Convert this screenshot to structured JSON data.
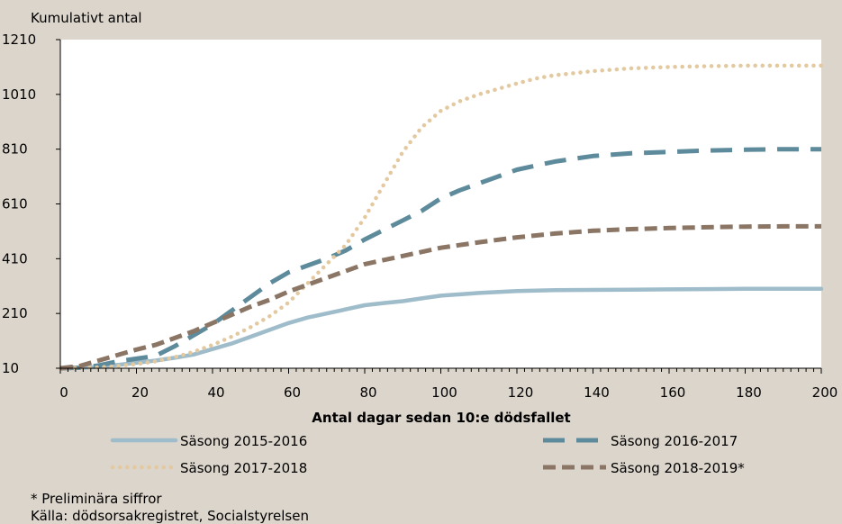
{
  "colors": {
    "background": "#dcd5cb",
    "plot_area": "#ffffff",
    "s2015": "#9fbccb",
    "s2016": "#5e8b9c",
    "s2017": "#e3c9a0",
    "s2018": "#8b7564"
  },
  "chart_data": {
    "type": "line",
    "title": "",
    "ylabel": "Kumulativt antal",
    "xlabel": "Antal dagar sedan 10:e dödsfallet",
    "xlim": [
      0,
      200
    ],
    "ylim": [
      10,
      1210
    ],
    "xticks": [
      0,
      20,
      40,
      60,
      80,
      100,
      120,
      140,
      160,
      180,
      200
    ],
    "yticks": [
      10,
      210,
      410,
      610,
      810,
      1010,
      1210
    ],
    "grid": false,
    "legend_position": "bottom",
    "series": [
      {
        "name": "Säsong 2015-2016",
        "style": "solid",
        "x": [
          0,
          5,
          10,
          15,
          20,
          25,
          30,
          35,
          40,
          45,
          50,
          55,
          60,
          65,
          70,
          75,
          80,
          85,
          90,
          95,
          100,
          110,
          120,
          130,
          140,
          150,
          160,
          170,
          180,
          190,
          200
        ],
        "y": [
          10,
          11,
          15,
          22,
          30,
          38,
          48,
          60,
          80,
          100,
          125,
          150,
          175,
          195,
          210,
          225,
          240,
          248,
          255,
          265,
          275,
          285,
          292,
          295,
          296,
          297,
          298,
          299,
          300,
          300,
          300
        ]
      },
      {
        "name": "Säsong 2016-2017",
        "style": "dashed",
        "x": [
          0,
          5,
          10,
          15,
          20,
          25,
          30,
          35,
          40,
          45,
          50,
          55,
          60,
          65,
          70,
          75,
          80,
          85,
          90,
          95,
          100,
          105,
          110,
          115,
          120,
          130,
          140,
          150,
          160,
          170,
          180,
          190,
          200
        ],
        "y": [
          10,
          12,
          20,
          35,
          45,
          55,
          90,
          130,
          170,
          220,
          270,
          320,
          360,
          385,
          410,
          440,
          480,
          515,
          550,
          585,
          630,
          660,
          685,
          710,
          735,
          765,
          785,
          795,
          800,
          805,
          808,
          810,
          810
        ]
      },
      {
        "name": "Säsong 2017-2018",
        "style": "dotted",
        "x": [
          0,
          5,
          10,
          15,
          20,
          25,
          30,
          35,
          40,
          45,
          50,
          55,
          60,
          65,
          70,
          75,
          80,
          85,
          90,
          95,
          100,
          105,
          110,
          115,
          120,
          125,
          130,
          140,
          150,
          160,
          170,
          180,
          190,
          200
        ],
        "y": [
          10,
          11,
          13,
          18,
          25,
          35,
          50,
          70,
          95,
          125,
          160,
          200,
          250,
          320,
          390,
          460,
          560,
          680,
          800,
          890,
          950,
          985,
          1010,
          1030,
          1050,
          1068,
          1080,
          1095,
          1105,
          1110,
          1113,
          1115,
          1115,
          1115
        ]
      },
      {
        "name": "Säsong 2018-2019*",
        "style": "dashed-dark",
        "x": [
          0,
          5,
          10,
          15,
          20,
          25,
          30,
          35,
          40,
          45,
          50,
          55,
          60,
          65,
          70,
          75,
          80,
          90,
          100,
          110,
          120,
          130,
          140,
          150,
          160,
          170,
          180,
          190,
          200
        ],
        "y": [
          10,
          18,
          38,
          58,
          78,
          95,
          120,
          145,
          175,
          205,
          235,
          260,
          290,
          315,
          340,
          365,
          390,
          420,
          450,
          470,
          488,
          502,
          512,
          518,
          522,
          525,
          527,
          528,
          528
        ]
      }
    ]
  },
  "notes": {
    "preliminary": "* Preliminära siffror",
    "source": "Källa: dödsorsakregistret, Socialstyrelsen"
  }
}
